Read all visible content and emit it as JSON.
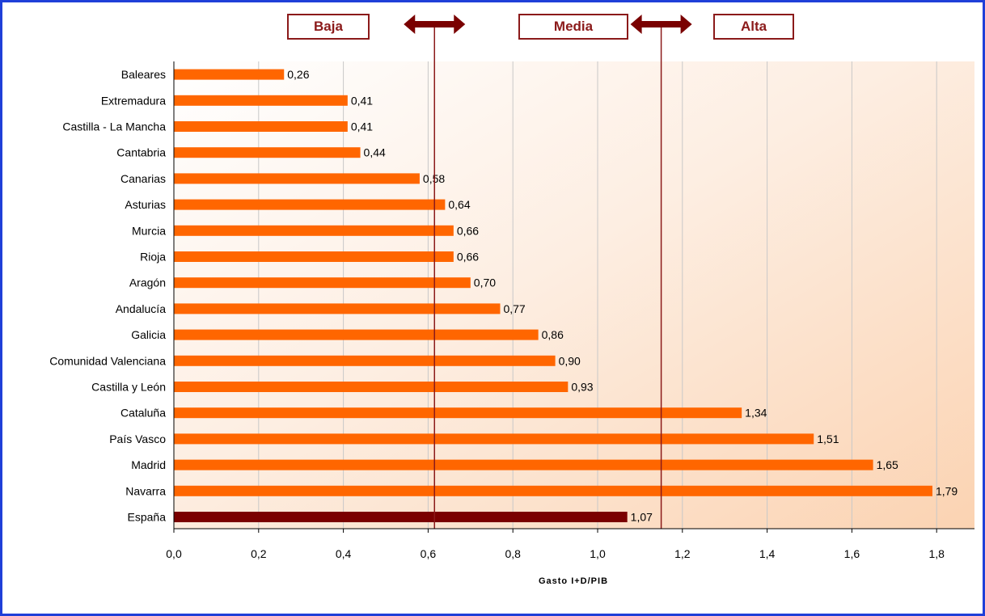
{
  "chart_data": {
    "type": "bar",
    "orientation": "horizontal",
    "xlabel": "Gasto I+D/PIB",
    "xlim": [
      0,
      1.9
    ],
    "xticks": [
      "0,0",
      "0,2",
      "0,4",
      "0,6",
      "0,8",
      "1,0",
      "1,2",
      "1,4",
      "1,6",
      "1,8"
    ],
    "grid": true,
    "categories": [
      "Baleares",
      "Extremadura",
      "Castilla - La Mancha",
      "Cantabria",
      "Canarias",
      "Asturias",
      "Murcia",
      "Rioja",
      "Aragón",
      "Andalucía",
      "Galicia",
      "Comunidad Valenciana",
      "Castilla y León",
      "Cataluña",
      "País Vasco",
      "Madrid",
      "Navarra",
      "España"
    ],
    "values": [
      0.26,
      0.41,
      0.41,
      0.44,
      0.58,
      0.64,
      0.66,
      0.66,
      0.7,
      0.77,
      0.86,
      0.9,
      0.93,
      1.34,
      1.51,
      1.65,
      1.79,
      1.07
    ],
    "value_labels": [
      "0,26",
      "0,41",
      "0,41",
      "0,44",
      "0,58",
      "0,64",
      "0,66",
      "0,66",
      "0,70",
      "0,77",
      "0,86",
      "0,90",
      "0,93",
      "1,34",
      "1,51",
      "1,65",
      "1,79",
      "1,07"
    ],
    "highlight_category": "España",
    "colors": {
      "bar": "#ff6600",
      "highlight": "#7a0000",
      "threshold_line": "#8b1a1a",
      "frame": "#1f3fd8"
    },
    "thresholds": [
      0.615,
      1.15
    ],
    "zones": [
      "Baja",
      "Media",
      "Alta"
    ]
  }
}
